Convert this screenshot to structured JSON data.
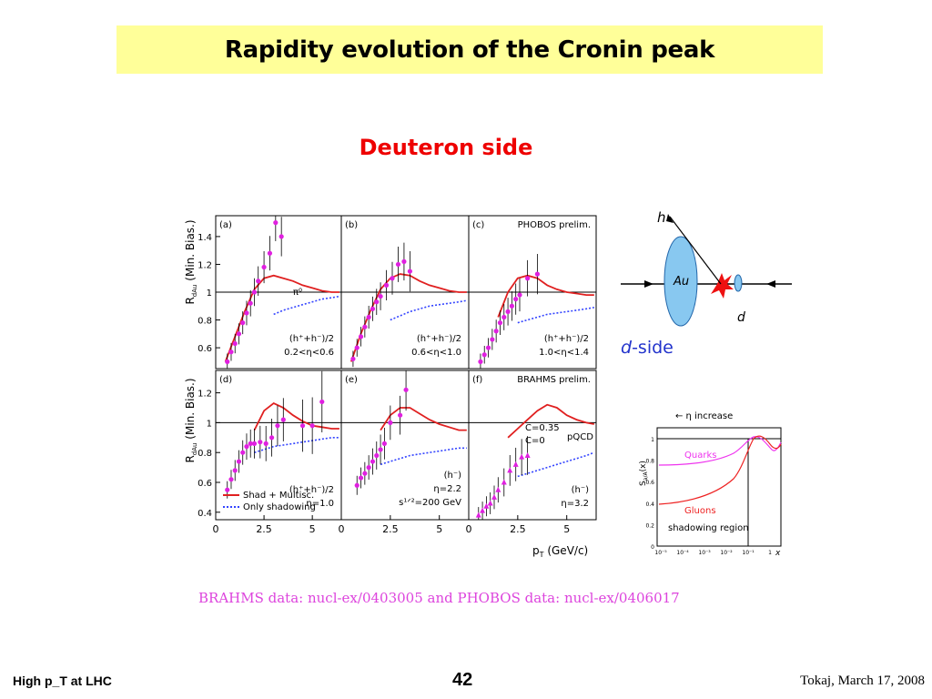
{
  "slide": {
    "title": "Rapidity evolution of the Cronin peak",
    "subtitle": "Deuteron side",
    "reference": "BRAHMS data: nucl-ex/0403005 and PHOBOS data: nucl-ex/0406017"
  },
  "footer": {
    "left": "High p_T at LHC",
    "page": "42",
    "right": "Tokaj, March 17, 2008"
  },
  "colors": {
    "title_bg": "#ffff99",
    "accent_red": "#ee0000",
    "data_magenta": "#e020e0",
    "theory_red": "#e02020",
    "shadowing_blue": "#3344ff"
  },
  "chart_data": [
    {
      "type": "scatter",
      "panel": "(a)",
      "ylabel": "R_dAu (Min. Bias.)",
      "xlabel": "",
      "xlim": [
        0,
        6.5
      ],
      "ylim": [
        0.45,
        1.55
      ],
      "yticks": [
        0.6,
        0.8,
        1,
        1.2,
        1.4
      ],
      "annotation": [
        "(h⁺+h⁻)/2",
        "0.2<η<0.6"
      ],
      "marker_label": "π⁰",
      "data": {
        "x": [
          0.6,
          0.8,
          1.0,
          1.2,
          1.4,
          1.6,
          1.8,
          2.0,
          2.2,
          2.5,
          2.8,
          3.1,
          3.4
        ],
        "y": [
          0.5,
          0.57,
          0.63,
          0.7,
          0.78,
          0.85,
          0.92,
          1.0,
          1.08,
          1.18,
          1.28,
          1.5,
          1.4
        ]
      },
      "theory": {
        "x": [
          0.5,
          1.0,
          1.5,
          2.0,
          2.5,
          3.0,
          3.5,
          4.0,
          4.5,
          5.0,
          5.5,
          6.0,
          6.4
        ],
        "y": [
          0.5,
          0.68,
          0.86,
          1.02,
          1.1,
          1.12,
          1.1,
          1.08,
          1.05,
          1.03,
          1.01,
          1.0,
          1.0
        ]
      },
      "shadowing": {
        "x": [
          3.0,
          3.5,
          4.0,
          4.5,
          5.0,
          5.5,
          6.0,
          6.4
        ],
        "y": [
          0.84,
          0.87,
          0.89,
          0.91,
          0.93,
          0.95,
          0.96,
          0.97
        ]
      }
    },
    {
      "type": "scatter",
      "panel": "(b)",
      "xlim": [
        0,
        6.5
      ],
      "ylim": [
        0.45,
        1.55
      ],
      "annotation": [
        "(h⁺+h⁻)/2",
        "0.6<η<1.0"
      ],
      "data": {
        "x": [
          0.6,
          0.8,
          1.0,
          1.2,
          1.4,
          1.6,
          1.8,
          2.0,
          2.3,
          2.6,
          2.9,
          3.2,
          3.5
        ],
        "y": [
          0.52,
          0.6,
          0.68,
          0.75,
          0.82,
          0.88,
          0.93,
          0.97,
          1.05,
          1.1,
          1.2,
          1.22,
          1.15
        ]
      },
      "theory": {
        "x": [
          0.5,
          1.0,
          1.5,
          2.0,
          2.5,
          3.0,
          3.5,
          4.0,
          4.5,
          5.0,
          5.5,
          6.0,
          6.4
        ],
        "y": [
          0.5,
          0.7,
          0.87,
          1.02,
          1.1,
          1.13,
          1.12,
          1.08,
          1.05,
          1.03,
          1.01,
          1.0,
          1.0
        ]
      },
      "shadowing": {
        "x": [
          2.5,
          3.0,
          3.5,
          4.0,
          4.5,
          5.0,
          5.5,
          6.0,
          6.4
        ],
        "y": [
          0.8,
          0.83,
          0.86,
          0.88,
          0.9,
          0.91,
          0.92,
          0.93,
          0.94
        ]
      }
    },
    {
      "type": "scatter",
      "panel": "(c)",
      "legend": "PHOBOS prelim.",
      "xlim": [
        0,
        6.5
      ],
      "ylim": [
        0.45,
        1.55
      ],
      "annotation": [
        "(h⁺+h⁻)/2",
        "1.0<η<1.4"
      ],
      "data": {
        "x": [
          0.6,
          0.8,
          1.0,
          1.2,
          1.4,
          1.6,
          1.8,
          2.0,
          2.2,
          2.4,
          2.6,
          3.0,
          3.5
        ],
        "y": [
          0.5,
          0.55,
          0.6,
          0.66,
          0.72,
          0.78,
          0.82,
          0.86,
          0.9,
          0.95,
          0.98,
          1.1,
          1.13
        ]
      },
      "theory": {
        "x": [
          1.5,
          2.0,
          2.5,
          3.0,
          3.5,
          4.0,
          4.5,
          5.0,
          5.5,
          6.0,
          6.4
        ],
        "y": [
          0.82,
          1.0,
          1.1,
          1.12,
          1.1,
          1.05,
          1.02,
          1.0,
          0.99,
          0.98,
          0.98
        ]
      },
      "shadowing": {
        "x": [
          2.5,
          3.0,
          3.5,
          4.0,
          4.5,
          5.0,
          5.5,
          6.0,
          6.4
        ],
        "y": [
          0.78,
          0.8,
          0.82,
          0.84,
          0.85,
          0.86,
          0.87,
          0.88,
          0.89
        ]
      }
    },
    {
      "type": "scatter",
      "panel": "(d)",
      "ylabel": "R_dAu (Min. Bias.)",
      "xlim": [
        0,
        6.5
      ],
      "ylim": [
        0.35,
        1.35
      ],
      "yticks": [
        0.4,
        0.6,
        0.8,
        1,
        1.2
      ],
      "xticks": [
        0,
        2.5,
        5
      ],
      "annotation": [
        "(h⁺+h⁻)/2",
        "η=1.0"
      ],
      "legend": [
        "Shad + Multisc.",
        "Only shadowing"
      ],
      "data": {
        "x": [
          0.6,
          0.8,
          1.0,
          1.2,
          1.4,
          1.6,
          1.8,
          2.0,
          2.3,
          2.6,
          2.9,
          3.2,
          3.5,
          4.5,
          5.0,
          5.5
        ],
        "y": [
          0.55,
          0.62,
          0.68,
          0.74,
          0.8,
          0.84,
          0.86,
          0.86,
          0.87,
          0.86,
          0.9,
          0.98,
          1.02,
          0.98,
          0.98,
          1.14
        ]
      },
      "theory": {
        "x": [
          2.0,
          2.5,
          3.0,
          3.5,
          4.0,
          4.5,
          5.0,
          5.5,
          6.0,
          6.4
        ],
        "y": [
          0.95,
          1.08,
          1.13,
          1.1,
          1.05,
          1.01,
          0.98,
          0.97,
          0.96,
          0.96
        ]
      },
      "shadowing": {
        "x": [
          2.0,
          2.5,
          3.0,
          3.5,
          4.0,
          4.5,
          5.0,
          5.5,
          6.0,
          6.4
        ],
        "y": [
          0.8,
          0.82,
          0.84,
          0.85,
          0.86,
          0.87,
          0.88,
          0.89,
          0.9,
          0.9
        ]
      }
    },
    {
      "type": "scatter",
      "panel": "(e)",
      "xlim": [
        0,
        6.5
      ],
      "ylim": [
        0.35,
        1.35
      ],
      "xticks": [
        0,
        2.5,
        5
      ],
      "annotation": [
        "(h⁻)",
        "η=2.2",
        "s¹ᐟ²=200 GeV"
      ],
      "data": {
        "x": [
          0.8,
          1.0,
          1.2,
          1.4,
          1.6,
          1.8,
          2.0,
          2.2,
          2.5,
          3.0,
          3.3
        ],
        "y": [
          0.58,
          0.63,
          0.66,
          0.7,
          0.74,
          0.78,
          0.82,
          0.86,
          1.0,
          1.05,
          1.22
        ]
      },
      "theory": {
        "x": [
          2.0,
          2.5,
          3.0,
          3.5,
          4.0,
          4.5,
          5.0,
          5.5,
          6.0,
          6.4
        ],
        "y": [
          0.95,
          1.05,
          1.1,
          1.1,
          1.06,
          1.02,
          0.99,
          0.97,
          0.95,
          0.95
        ]
      },
      "shadowing": {
        "x": [
          2.0,
          2.5,
          3.0,
          3.5,
          4.0,
          4.5,
          5.0,
          5.5,
          6.0,
          6.4
        ],
        "y": [
          0.72,
          0.74,
          0.76,
          0.78,
          0.79,
          0.8,
          0.81,
          0.82,
          0.83,
          0.83
        ]
      }
    },
    {
      "type": "scatter",
      "panel": "(f)",
      "legend": "BRAHMS prelim.",
      "xlim": [
        0,
        6.5
      ],
      "ylim": [
        0.35,
        1.35
      ],
      "xticks": [
        0,
        2.5,
        5
      ],
      "xlabel": "p_T (GeV/c)",
      "annotation": [
        "(h⁻)",
        "η=3.2"
      ],
      "curve_labels": [
        "C=0.35",
        "C=0",
        "pQCD"
      ],
      "data": {
        "x": [
          0.5,
          0.7,
          0.9,
          1.1,
          1.3,
          1.5,
          1.8,
          2.1,
          2.4,
          2.7,
          3.0
        ],
        "y": [
          0.38,
          0.41,
          0.44,
          0.46,
          0.5,
          0.55,
          0.6,
          0.68,
          0.72,
          0.77,
          0.78
        ]
      },
      "theory": {
        "x": [
          2.0,
          2.5,
          3.0,
          3.5,
          4.0,
          4.5,
          5.0,
          5.5,
          6.0,
          6.4
        ],
        "y": [
          0.9,
          0.96,
          1.02,
          1.08,
          1.12,
          1.1,
          1.05,
          1.02,
          1.0,
          0.99
        ]
      },
      "shadowing": {
        "x": [
          2.5,
          3.0,
          3.5,
          4.0,
          4.5,
          5.0,
          5.5,
          6.0,
          6.4
        ],
        "y": [
          0.64,
          0.66,
          0.68,
          0.7,
          0.72,
          0.74,
          0.76,
          0.78,
          0.8
        ]
      }
    }
  ],
  "diagram": {
    "label_h": "h",
    "label_au": "Au",
    "label_d": "d",
    "label_side": "d",
    "label_side_suffix": "-side"
  },
  "shadowing_plot": {
    "arrow_label": "← η increase",
    "ylabel": "S_{a/A}(x)",
    "yticks": [
      "0",
      "0.2",
      "0.4",
      "0.6",
      "0.8",
      "1"
    ],
    "xticks": [
      "10⁻⁵",
      "10⁻⁴",
      "10⁻³",
      "10⁻²",
      "10⁻¹",
      "1"
    ],
    "xlabel": "x",
    "quarks_label": "Quarks",
    "gluons_label": "Gluons",
    "region_label": "shadowing region"
  }
}
